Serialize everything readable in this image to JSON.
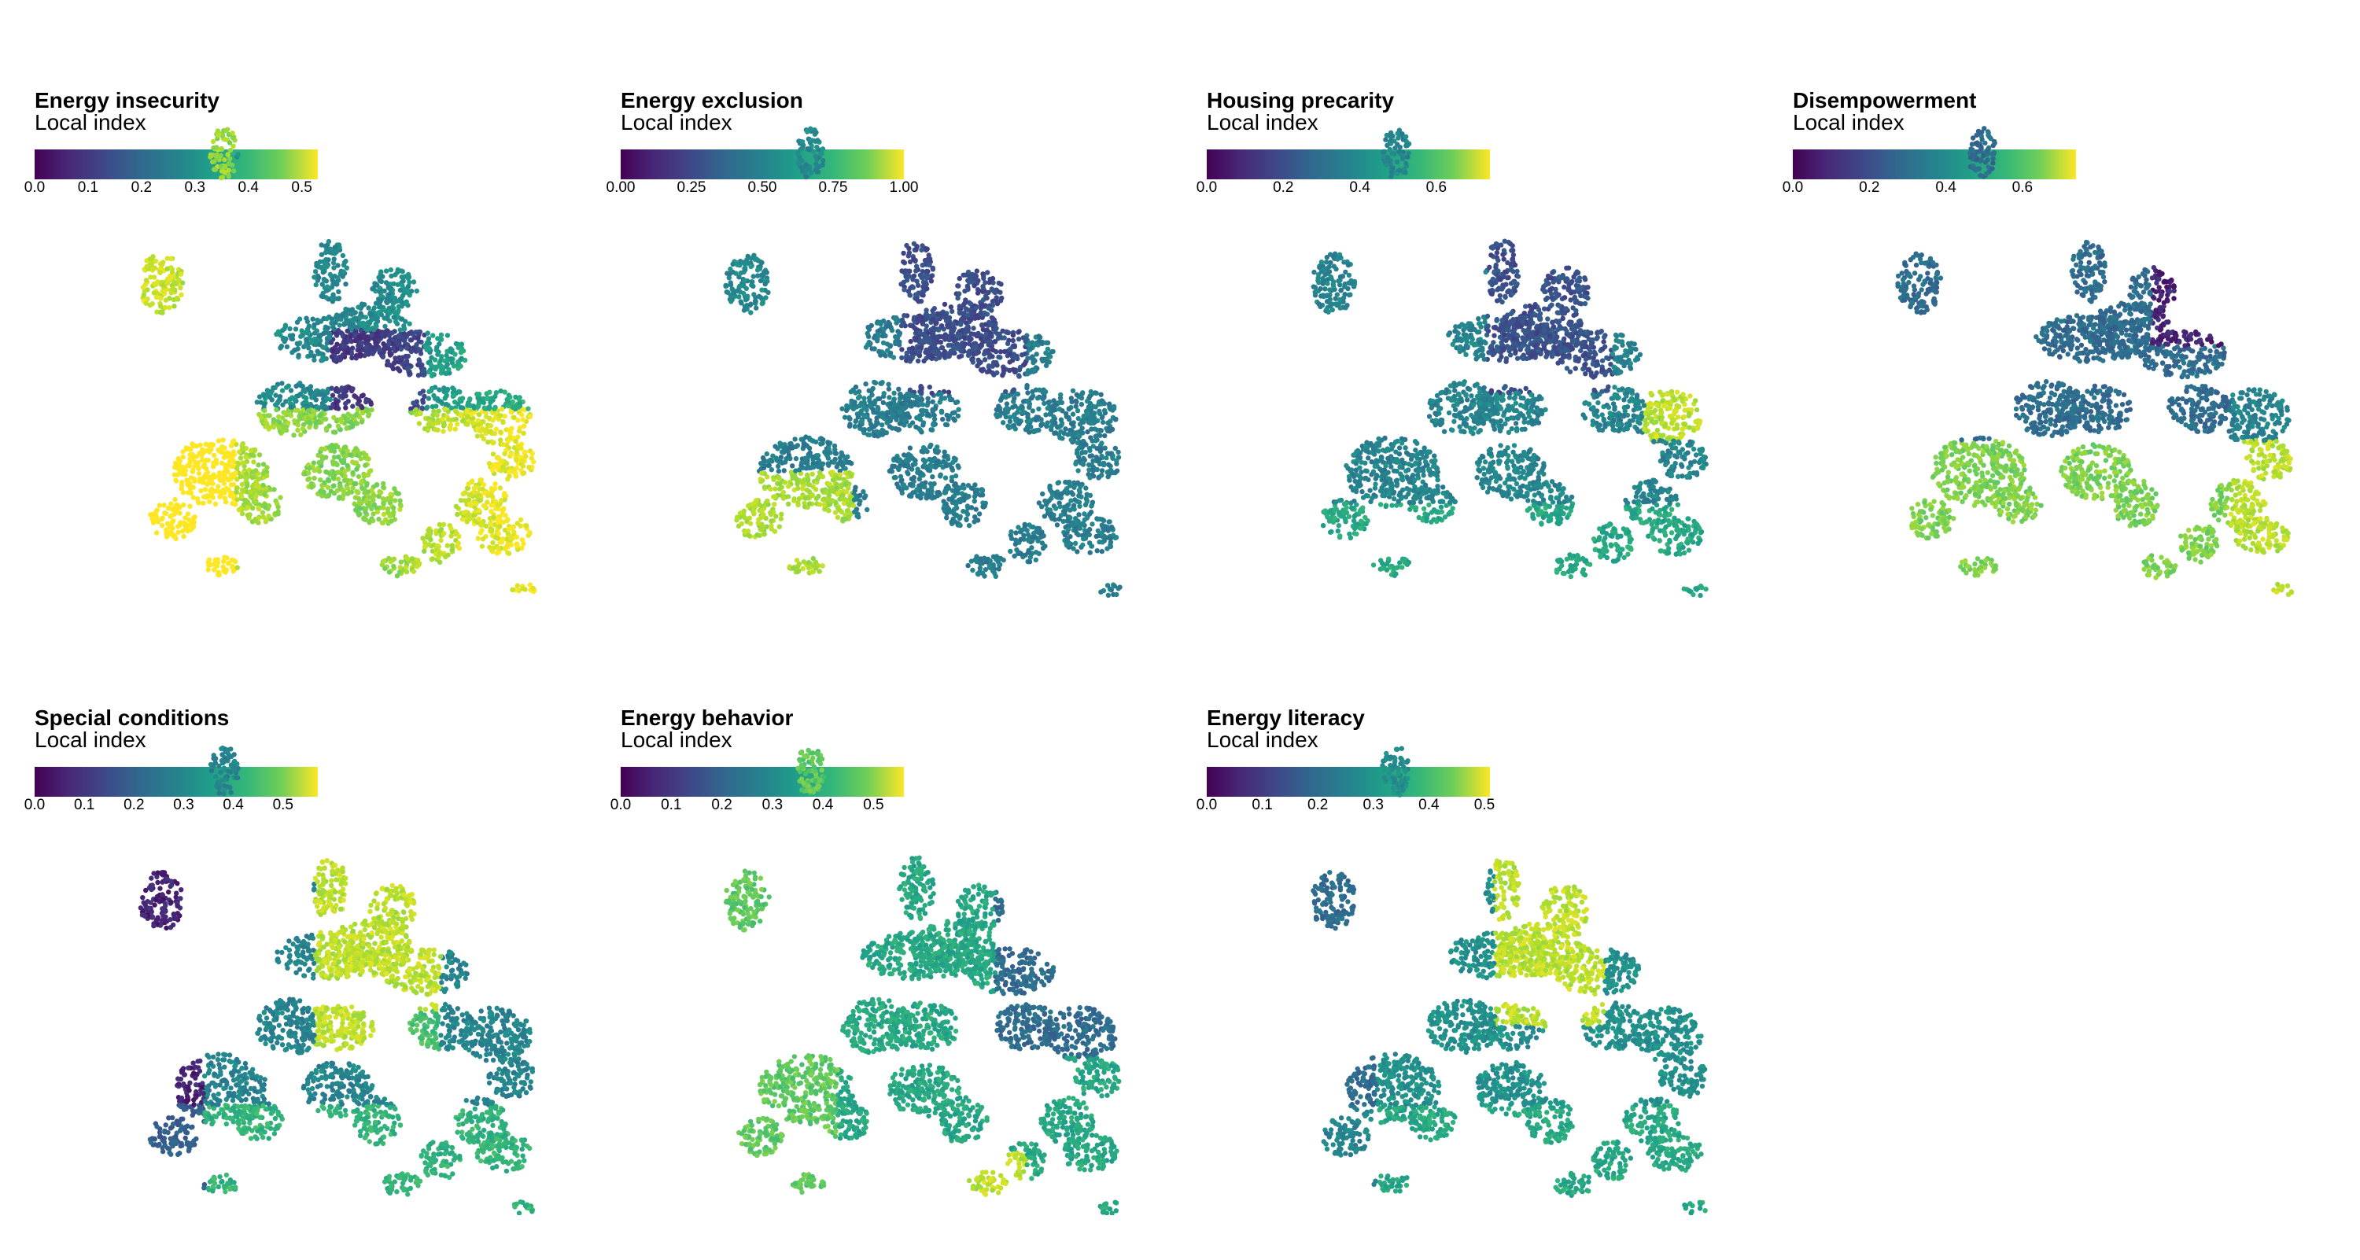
{
  "panels": [
    {
      "title": "Energy insecurity",
      "subtitle": "Local index",
      "ticks": [
        "0.0",
        "0.1",
        "0.2",
        "0.3",
        "0.4",
        "0.5"
      ],
      "tick_values": [
        0,
        0.1,
        0.2,
        0.3,
        0.4,
        0.5
      ],
      "range": [
        0,
        0.53
      ]
    },
    {
      "title": "Energy exclusion",
      "subtitle": "Local index",
      "ticks": [
        "0.00",
        "0.25",
        "0.50",
        "0.75",
        "1.00"
      ],
      "tick_values": [
        0,
        0.25,
        0.5,
        0.75,
        1.0
      ],
      "range": [
        0,
        1.0
      ]
    },
    {
      "title": "Housing precarity",
      "subtitle": "Local index",
      "ticks": [
        "0.0",
        "0.2",
        "0.4",
        "0.6"
      ],
      "tick_values": [
        0,
        0.2,
        0.4,
        0.6
      ],
      "range": [
        0,
        0.74
      ]
    },
    {
      "title": "Disempowerment",
      "subtitle": "Local index",
      "ticks": [
        "0.0",
        "0.2",
        "0.4",
        "0.6"
      ],
      "tick_values": [
        0,
        0.2,
        0.4,
        0.6
      ],
      "range": [
        0,
        0.74
      ]
    },
    {
      "title": "Special conditions",
      "subtitle": "Local index",
      "ticks": [
        "0.0",
        "0.1",
        "0.2",
        "0.3",
        "0.4",
        "0.5"
      ],
      "tick_values": [
        0,
        0.1,
        0.2,
        0.3,
        0.4,
        0.5
      ],
      "range": [
        0,
        0.57
      ]
    },
    {
      "title": "Energy behavior",
      "subtitle": "Local index",
      "ticks": [
        "0.0",
        "0.1",
        "0.2",
        "0.3",
        "0.4",
        "0.5"
      ],
      "tick_values": [
        0,
        0.1,
        0.2,
        0.3,
        0.4,
        0.5
      ],
      "range": [
        0,
        0.56
      ]
    },
    {
      "title": "Energy literacy",
      "subtitle": "Local index",
      "ticks": [
        "0.0",
        "0.1",
        "0.2",
        "0.3",
        "0.4",
        "0.5"
      ],
      "tick_values": [
        0,
        0.1,
        0.2,
        0.3,
        0.4,
        0.5
      ],
      "range": [
        0,
        0.51
      ]
    }
  ],
  "colors": {
    "viridis_low": "#440154",
    "viridis_mid": "#21918c",
    "viridis_high": "#fde725"
  }
}
